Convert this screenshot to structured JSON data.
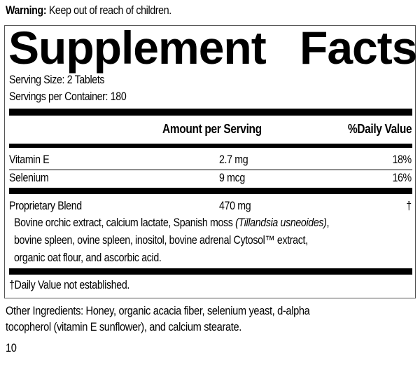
{
  "warning": {
    "label": "Warning:",
    "text": "Keep out of reach of children."
  },
  "panel": {
    "title_left": "Supplement",
    "title_right": "Facts",
    "serving_size": "Serving Size: 2 Tablets",
    "servings_per_container": "Servings per Container: 180",
    "header": {
      "amount": "Amount per Serving",
      "dv": "%Daily Value"
    },
    "rows": [
      {
        "name": "Vitamin E",
        "amount": "2.7 mg",
        "dv": "18%"
      },
      {
        "name": "Selenium",
        "amount": "9 mcg",
        "dv": "16%"
      }
    ],
    "blend": {
      "name": "Proprietary Blend",
      "amount": "470 mg",
      "dv": "†",
      "line1_a": "Bovine orchic extract, calcium lactate, Spanish moss ",
      "line1_italic": "(Tillandsia usneoides)",
      "line1_b": ",",
      "line2": "bovine spleen, ovine spleen, inositol, bovine adrenal Cytosol™ extract,",
      "line3": "organic oat flour, and ascorbic acid."
    },
    "footnote": "†Daily Value not established."
  },
  "other_ingredients": {
    "line1": "Other Ingredients: Honey, organic acacia fiber, selenium yeast, d-alpha",
    "line2": "tocopherol (vitamin E sunflower), and calcium stearate."
  },
  "page_number": "10"
}
